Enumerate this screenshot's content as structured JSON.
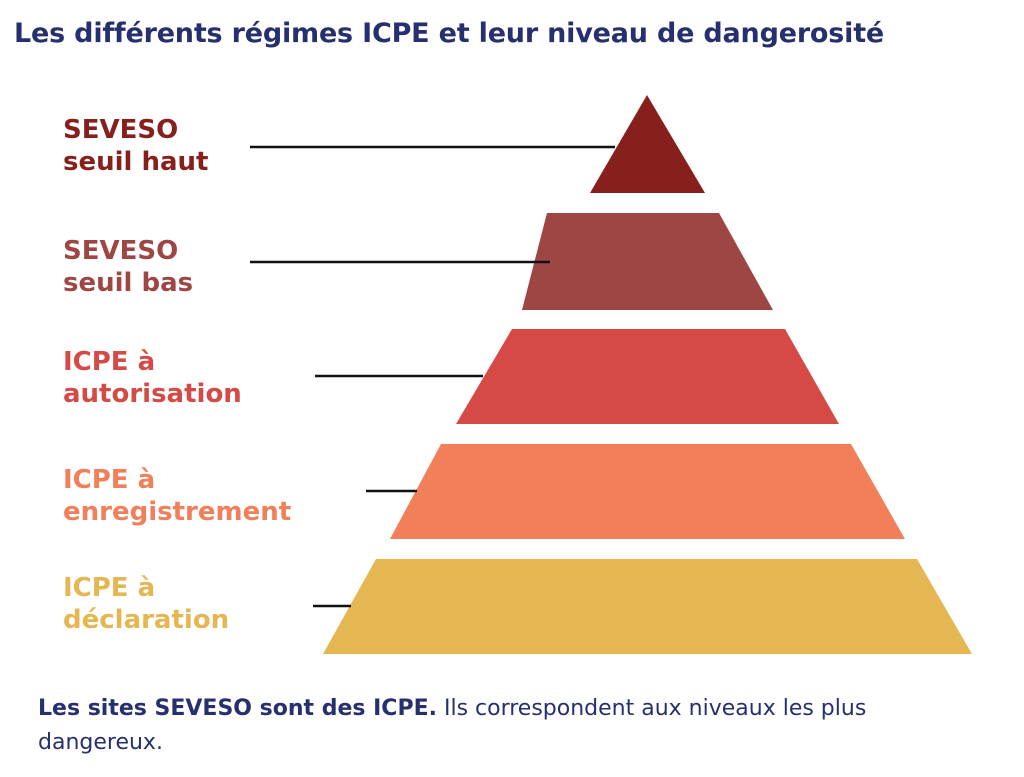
{
  "title": "Les différents régimes ICPE et leur niveau de dangerosité",
  "levels": [
    {
      "line1": "SEVESO",
      "line2": "seuil haut",
      "color": "#87201d"
    },
    {
      "line1": "SEVESO",
      "line2": "seuil bas",
      "color": "#9e4644"
    },
    {
      "line1": "ICPE à",
      "line2": "autorisation",
      "color": "#d54a46"
    },
    {
      "line1": "ICPE à",
      "line2": "enregistrement",
      "color": "#f07f5a"
    },
    {
      "line1": "ICPE à",
      "line2": "déclaration",
      "color": "#e4b752"
    }
  ],
  "footer": {
    "bold": "Les sites SEVESO sont des ICPE.",
    "text": " Ils correspondent aux niveaux les plus dangereux."
  },
  "colors": {
    "title": "#27306e",
    "connector": "#111111"
  }
}
